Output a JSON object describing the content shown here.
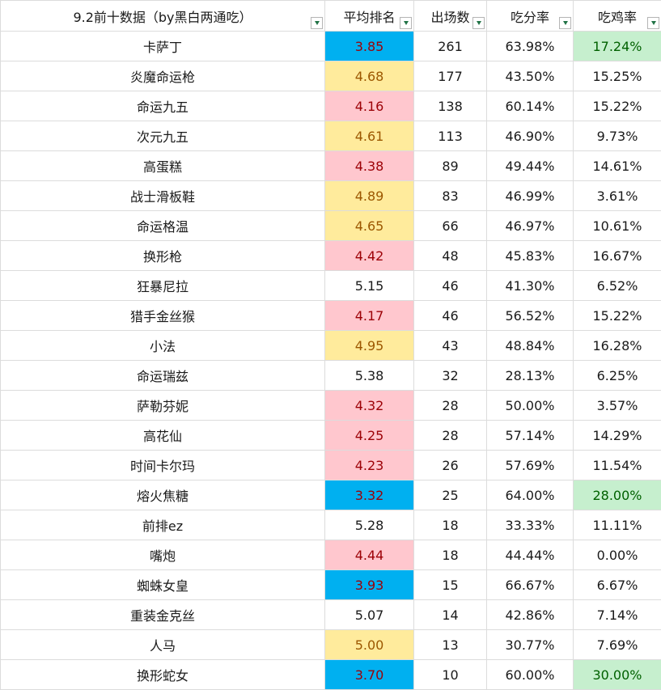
{
  "sheet": {
    "headers": {
      "name": "9.2前十数据（by黑白两通吃）",
      "avg_rank": "平均排名",
      "games": "出场数",
      "top4_rate": "吃分率",
      "win_rate": "吃鸡率"
    },
    "filter_icon": "dropdown-triangle-icon",
    "colors": {
      "rank_blue": "#00b0f0",
      "rank_yellow": "#ffeb9c",
      "rank_red": "#ffc7ce",
      "win_green": "#c6efce"
    },
    "rows": [
      {
        "name": "卡萨丁",
        "avg_rank": "3.85",
        "rank_fill": "blue",
        "games": "261",
        "top4_rate": "63.98%",
        "win_rate": "17.24%",
        "win_fill": "green"
      },
      {
        "name": "炎魔命运枪",
        "avg_rank": "4.68",
        "rank_fill": "yellow",
        "games": "177",
        "top4_rate": "43.50%",
        "win_rate": "15.25%",
        "win_fill": "none"
      },
      {
        "name": "命运九五",
        "avg_rank": "4.16",
        "rank_fill": "red",
        "games": "138",
        "top4_rate": "60.14%",
        "win_rate": "15.22%",
        "win_fill": "none"
      },
      {
        "name": "次元九五",
        "avg_rank": "4.61",
        "rank_fill": "yellow",
        "games": "113",
        "top4_rate": "46.90%",
        "win_rate": "9.73%",
        "win_fill": "none"
      },
      {
        "name": "高蛋糕",
        "avg_rank": "4.38",
        "rank_fill": "red",
        "games": "89",
        "top4_rate": "49.44%",
        "win_rate": "14.61%",
        "win_fill": "none"
      },
      {
        "name": "战士滑板鞋",
        "avg_rank": "4.89",
        "rank_fill": "yellow",
        "games": "83",
        "top4_rate": "46.99%",
        "win_rate": "3.61%",
        "win_fill": "none"
      },
      {
        "name": "命运格温",
        "avg_rank": "4.65",
        "rank_fill": "yellow",
        "games": "66",
        "top4_rate": "46.97%",
        "win_rate": "10.61%",
        "win_fill": "none"
      },
      {
        "name": "换形枪",
        "avg_rank": "4.42",
        "rank_fill": "red",
        "games": "48",
        "top4_rate": "45.83%",
        "win_rate": "16.67%",
        "win_fill": "none"
      },
      {
        "name": "狂暴尼拉",
        "avg_rank": "5.15",
        "rank_fill": "none",
        "games": "46",
        "top4_rate": "41.30%",
        "win_rate": "6.52%",
        "win_fill": "none"
      },
      {
        "name": "猎手金丝猴",
        "avg_rank": "4.17",
        "rank_fill": "red",
        "games": "46",
        "top4_rate": "56.52%",
        "win_rate": "15.22%",
        "win_fill": "none"
      },
      {
        "name": "小法",
        "avg_rank": "4.95",
        "rank_fill": "yellow",
        "games": "43",
        "top4_rate": "48.84%",
        "win_rate": "16.28%",
        "win_fill": "none"
      },
      {
        "name": "命运瑞兹",
        "avg_rank": "5.38",
        "rank_fill": "none",
        "games": "32",
        "top4_rate": "28.13%",
        "win_rate": "6.25%",
        "win_fill": "none"
      },
      {
        "name": "萨勒芬妮",
        "avg_rank": "4.32",
        "rank_fill": "red",
        "games": "28",
        "top4_rate": "50.00%",
        "win_rate": "3.57%",
        "win_fill": "none"
      },
      {
        "name": "高花仙",
        "avg_rank": "4.25",
        "rank_fill": "red",
        "games": "28",
        "top4_rate": "57.14%",
        "win_rate": "14.29%",
        "win_fill": "none"
      },
      {
        "name": "时间卡尔玛",
        "avg_rank": "4.23",
        "rank_fill": "red",
        "games": "26",
        "top4_rate": "57.69%",
        "win_rate": "11.54%",
        "win_fill": "none"
      },
      {
        "name": "熔火焦糖",
        "avg_rank": "3.32",
        "rank_fill": "blue",
        "games": "25",
        "top4_rate": "64.00%",
        "win_rate": "28.00%",
        "win_fill": "green"
      },
      {
        "name": "前排ez",
        "avg_rank": "5.28",
        "rank_fill": "none",
        "games": "18",
        "top4_rate": "33.33%",
        "win_rate": "11.11%",
        "win_fill": "none"
      },
      {
        "name": "嘴炮",
        "avg_rank": "4.44",
        "rank_fill": "red",
        "games": "18",
        "top4_rate": "44.44%",
        "win_rate": "0.00%",
        "win_fill": "none"
      },
      {
        "name": "蜘蛛女皇",
        "avg_rank": "3.93",
        "rank_fill": "blue",
        "games": "15",
        "top4_rate": "66.67%",
        "win_rate": "6.67%",
        "win_fill": "none"
      },
      {
        "name": "重装金克丝",
        "avg_rank": "5.07",
        "rank_fill": "none",
        "games": "14",
        "top4_rate": "42.86%",
        "win_rate": "7.14%",
        "win_fill": "none"
      },
      {
        "name": "人马",
        "avg_rank": "5.00",
        "rank_fill": "yellow",
        "games": "13",
        "top4_rate": "30.77%",
        "win_rate": "7.69%",
        "win_fill": "none"
      },
      {
        "name": "换形蛇女",
        "avg_rank": "3.70",
        "rank_fill": "blue",
        "games": "10",
        "top4_rate": "60.00%",
        "win_rate": "30.00%",
        "win_fill": "green"
      }
    ]
  }
}
